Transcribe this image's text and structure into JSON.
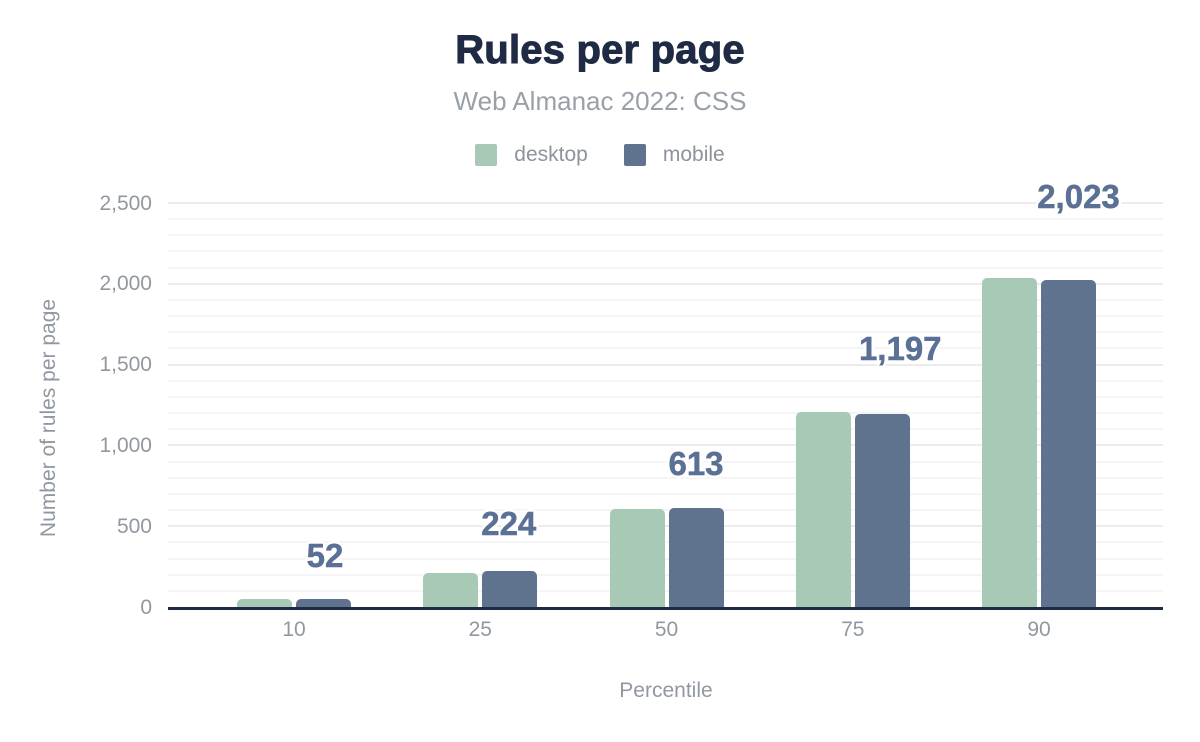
{
  "header": {
    "title": "Rules per page",
    "subtitle": "Web Almanac 2022: CSS"
  },
  "legend": {
    "items": [
      {
        "label": "desktop",
        "color": "#a7c9b5"
      },
      {
        "label": "mobile",
        "color": "#5f728e"
      }
    ]
  },
  "axes": {
    "y": {
      "title": "Number of rules per page",
      "ticks": [
        "0",
        "500",
        "1,000",
        "1,500",
        "2,000",
        "2,500"
      ],
      "tick_values": [
        0,
        500,
        1000,
        1500,
        2000,
        2500
      ],
      "max": 2500,
      "minor_step": 100
    },
    "x": {
      "title": "Percentile",
      "ticks": [
        "10",
        "25",
        "50",
        "75",
        "90"
      ]
    }
  },
  "chart_data": {
    "type": "bar",
    "title": "Rules per page",
    "subtitle": "Web Almanac 2022: CSS",
    "categories": [
      "10",
      "25",
      "50",
      "75",
      "90"
    ],
    "xlabel": "Percentile",
    "ylabel": "Number of rules per page",
    "ylim": [
      0,
      2500
    ],
    "grid": true,
    "legend_position": "top",
    "series": [
      {
        "name": "desktop",
        "color": "#a7c9b5",
        "values": [
          49,
          208,
          609,
          1208,
          2037
        ]
      },
      {
        "name": "mobile",
        "color": "#5f728e",
        "values": [
          52,
          224,
          613,
          1197,
          2023
        ],
        "data_labels": [
          "52",
          "224",
          "613",
          "1,197",
          "2,023"
        ]
      }
    ]
  },
  "colors": {
    "background": "#ffffff",
    "title": "#1f2b44",
    "subtitle": "#9aa0a8",
    "legend_text": "#8d939d",
    "axis_text": "#9298a1",
    "data_label": "#5a7095",
    "baseline": "#1f2b44",
    "grid_major": "#ececec",
    "grid_minor": "#f5f5f5"
  }
}
